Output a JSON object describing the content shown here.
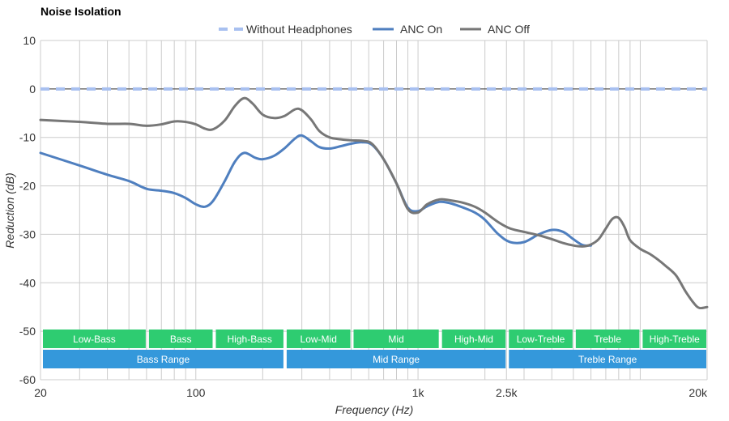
{
  "chart_data": {
    "type": "line",
    "title": "Noise Isolation",
    "xlabel": "Frequency (Hz)",
    "ylabel": "Reduction (dB)",
    "xscale": "log",
    "xlim": [
      20,
      20000
    ],
    "ylim": [
      -60,
      10
    ],
    "x_ticks": [
      {
        "value": 20,
        "label": "20"
      },
      {
        "value": 100,
        "label": "100"
      },
      {
        "value": 1000,
        "label": "1k"
      },
      {
        "value": 2500,
        "label": "2.5k"
      },
      {
        "value": 20000,
        "label": "20k"
      }
    ],
    "y_ticks": [
      10,
      0,
      -10,
      -20,
      -30,
      -40,
      -50,
      -60
    ],
    "legend_position": "top-center",
    "series": [
      {
        "name": "Without Headphones",
        "color": "#a8c0f0",
        "style": "dashed",
        "points": [
          [
            20,
            0
          ],
          [
            20000,
            0
          ]
        ]
      },
      {
        "name": "ANC On",
        "color": "#4f7fbf",
        "style": "solid",
        "points": [
          [
            20,
            -13.2
          ],
          [
            30,
            -15.8
          ],
          [
            40,
            -17.7
          ],
          [
            50,
            -19.0
          ],
          [
            60,
            -20.6
          ],
          [
            70,
            -21.0
          ],
          [
            80,
            -21.5
          ],
          [
            90,
            -22.5
          ],
          [
            100,
            -23.8
          ],
          [
            110,
            -24.3
          ],
          [
            120,
            -23.0
          ],
          [
            135,
            -19.0
          ],
          [
            150,
            -15.0
          ],
          [
            165,
            -13.2
          ],
          [
            185,
            -14.2
          ],
          [
            200,
            -14.5
          ],
          [
            225,
            -13.8
          ],
          [
            250,
            -12.3
          ],
          [
            280,
            -10.2
          ],
          [
            300,
            -9.6
          ],
          [
            330,
            -10.8
          ],
          [
            360,
            -12.0
          ],
          [
            400,
            -12.3
          ],
          [
            450,
            -11.8
          ],
          [
            500,
            -11.3
          ],
          [
            560,
            -11.0
          ],
          [
            620,
            -11.5
          ],
          [
            700,
            -14.5
          ],
          [
            800,
            -19.5
          ],
          [
            900,
            -24.5
          ],
          [
            1000,
            -25.2
          ],
          [
            1100,
            -24.2
          ],
          [
            1250,
            -23.3
          ],
          [
            1400,
            -23.6
          ],
          [
            1600,
            -24.5
          ],
          [
            1800,
            -25.5
          ],
          [
            2000,
            -27.0
          ],
          [
            2300,
            -30.0
          ],
          [
            2600,
            -31.6
          ],
          [
            3000,
            -31.6
          ],
          [
            3500,
            -30.0
          ],
          [
            4000,
            -29.1
          ],
          [
            4500,
            -29.5
          ],
          [
            5000,
            -31.0
          ],
          [
            5500,
            -32.2
          ],
          [
            6000,
            -32.3
          ]
        ]
      },
      {
        "name": "ANC Off",
        "color": "#777777",
        "style": "solid",
        "points": [
          [
            20,
            -6.4
          ],
          [
            30,
            -6.8
          ],
          [
            40,
            -7.2
          ],
          [
            50,
            -7.2
          ],
          [
            60,
            -7.6
          ],
          [
            70,
            -7.3
          ],
          [
            80,
            -6.7
          ],
          [
            90,
            -6.8
          ],
          [
            100,
            -7.3
          ],
          [
            110,
            -8.2
          ],
          [
            120,
            -8.3
          ],
          [
            135,
            -6.5
          ],
          [
            150,
            -3.5
          ],
          [
            165,
            -1.9
          ],
          [
            180,
            -3.0
          ],
          [
            200,
            -5.3
          ],
          [
            225,
            -6.0
          ],
          [
            250,
            -5.6
          ],
          [
            280,
            -4.2
          ],
          [
            300,
            -4.4
          ],
          [
            330,
            -6.3
          ],
          [
            360,
            -8.7
          ],
          [
            400,
            -10.0
          ],
          [
            450,
            -10.4
          ],
          [
            500,
            -10.6
          ],
          [
            560,
            -10.7
          ],
          [
            620,
            -11.3
          ],
          [
            700,
            -14.5
          ],
          [
            800,
            -19.5
          ],
          [
            900,
            -24.8
          ],
          [
            1000,
            -25.5
          ],
          [
            1100,
            -23.8
          ],
          [
            1250,
            -22.8
          ],
          [
            1400,
            -23.0
          ],
          [
            1600,
            -23.5
          ],
          [
            1800,
            -24.3
          ],
          [
            2000,
            -25.5
          ],
          [
            2300,
            -27.5
          ],
          [
            2600,
            -28.8
          ],
          [
            3000,
            -29.5
          ],
          [
            3500,
            -30.2
          ],
          [
            4000,
            -31.0
          ],
          [
            4500,
            -31.8
          ],
          [
            5000,
            -32.3
          ],
          [
            5500,
            -32.5
          ],
          [
            6000,
            -32.1
          ],
          [
            6500,
            -31.0
          ],
          [
            7000,
            -28.8
          ],
          [
            7500,
            -26.8
          ],
          [
            8000,
            -26.6
          ],
          [
            8500,
            -28.5
          ],
          [
            9000,
            -31.2
          ],
          [
            10000,
            -33.0
          ],
          [
            11000,
            -34.0
          ],
          [
            12000,
            -35.2
          ],
          [
            13000,
            -36.5
          ],
          [
            14500,
            -38.5
          ],
          [
            16000,
            -41.8
          ],
          [
            17500,
            -44.3
          ],
          [
            18500,
            -45.2
          ],
          [
            20000,
            -45.0
          ]
        ]
      }
    ],
    "ranges": [
      {
        "label": "Low-Bass",
        "start": 20,
        "end": 60,
        "row": 0
      },
      {
        "label": "Bass",
        "start": 60,
        "end": 120,
        "row": 0
      },
      {
        "label": "High-Bass",
        "start": 120,
        "end": 250,
        "row": 0
      },
      {
        "label": "Low-Mid",
        "start": 250,
        "end": 500,
        "row": 0
      },
      {
        "label": "Mid",
        "start": 500,
        "end": 1250,
        "row": 0
      },
      {
        "label": "High-Mid",
        "start": 1250,
        "end": 2500,
        "row": 0
      },
      {
        "label": "Low-Treble",
        "start": 2500,
        "end": 5000,
        "row": 0
      },
      {
        "label": "Treble",
        "start": 5000,
        "end": 10000,
        "row": 0
      },
      {
        "label": "High-Treble",
        "start": 10000,
        "end": 20000,
        "row": 0
      },
      {
        "label": "Bass Range",
        "start": 20,
        "end": 250,
        "row": 1
      },
      {
        "label": "Mid Range",
        "start": 250,
        "end": 2500,
        "row": 1
      },
      {
        "label": "Treble Range",
        "start": 2500,
        "end": 20000,
        "row": 1
      }
    ],
    "colors": {
      "range_row0": "#2ecc71",
      "range_row1": "#3498db",
      "grid": "#cccccc",
      "zero_line": "#333333"
    }
  }
}
